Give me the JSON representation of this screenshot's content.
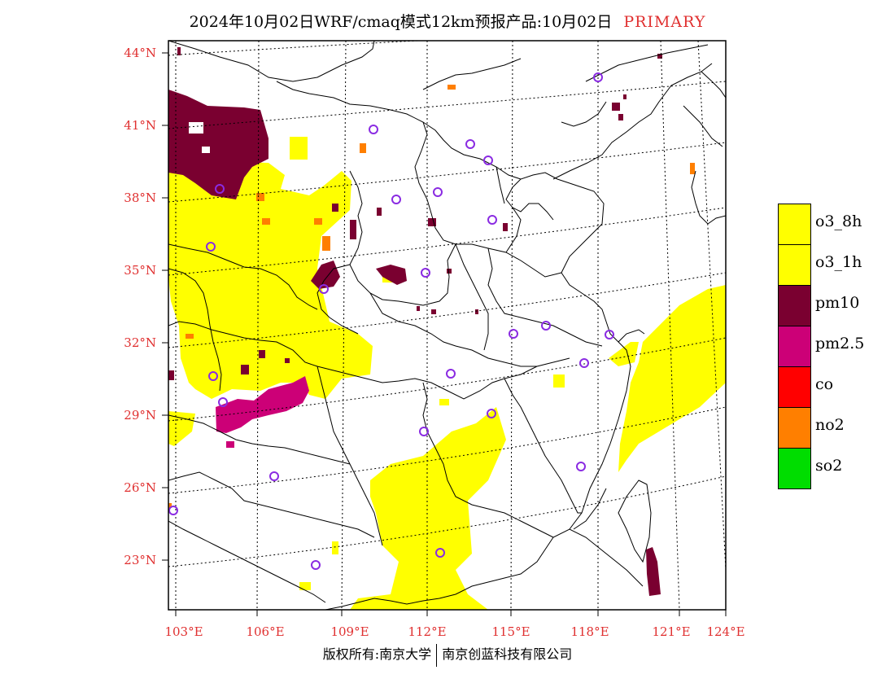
{
  "title": {
    "text": "2024年10月02日WRF/cmaq模式12km预报产品:10月02日",
    "tag": "PRIMARY"
  },
  "map": {
    "lat_labels": [
      "44°N",
      "41°N",
      "38°N",
      "35°N",
      "32°N",
      "29°N",
      "26°N",
      "23°N"
    ],
    "lon_labels": [
      "103°E",
      "106°E",
      "109°E",
      "112°E",
      "115°E",
      "118°E",
      "121°E",
      "124°E"
    ],
    "label_color": "#e03030",
    "station_marker_color": "#8a2be2"
  },
  "legend": {
    "items": [
      {
        "label": "o3_8h",
        "color": "#ffff00"
      },
      {
        "label": "o3_1h",
        "color": "#ffff00"
      },
      {
        "label": "pm10",
        "color": "#7a0030"
      },
      {
        "label": "pm2.5",
        "color": "#cc0077"
      },
      {
        "label": "co",
        "color": "#ff0000"
      },
      {
        "label": "no2",
        "color": "#ff7f00"
      },
      {
        "label": "so2",
        "color": "#00dd00"
      }
    ]
  },
  "footer": {
    "left": "版权所有:南京大学",
    "right": "南京创蓝科技有限公司"
  }
}
